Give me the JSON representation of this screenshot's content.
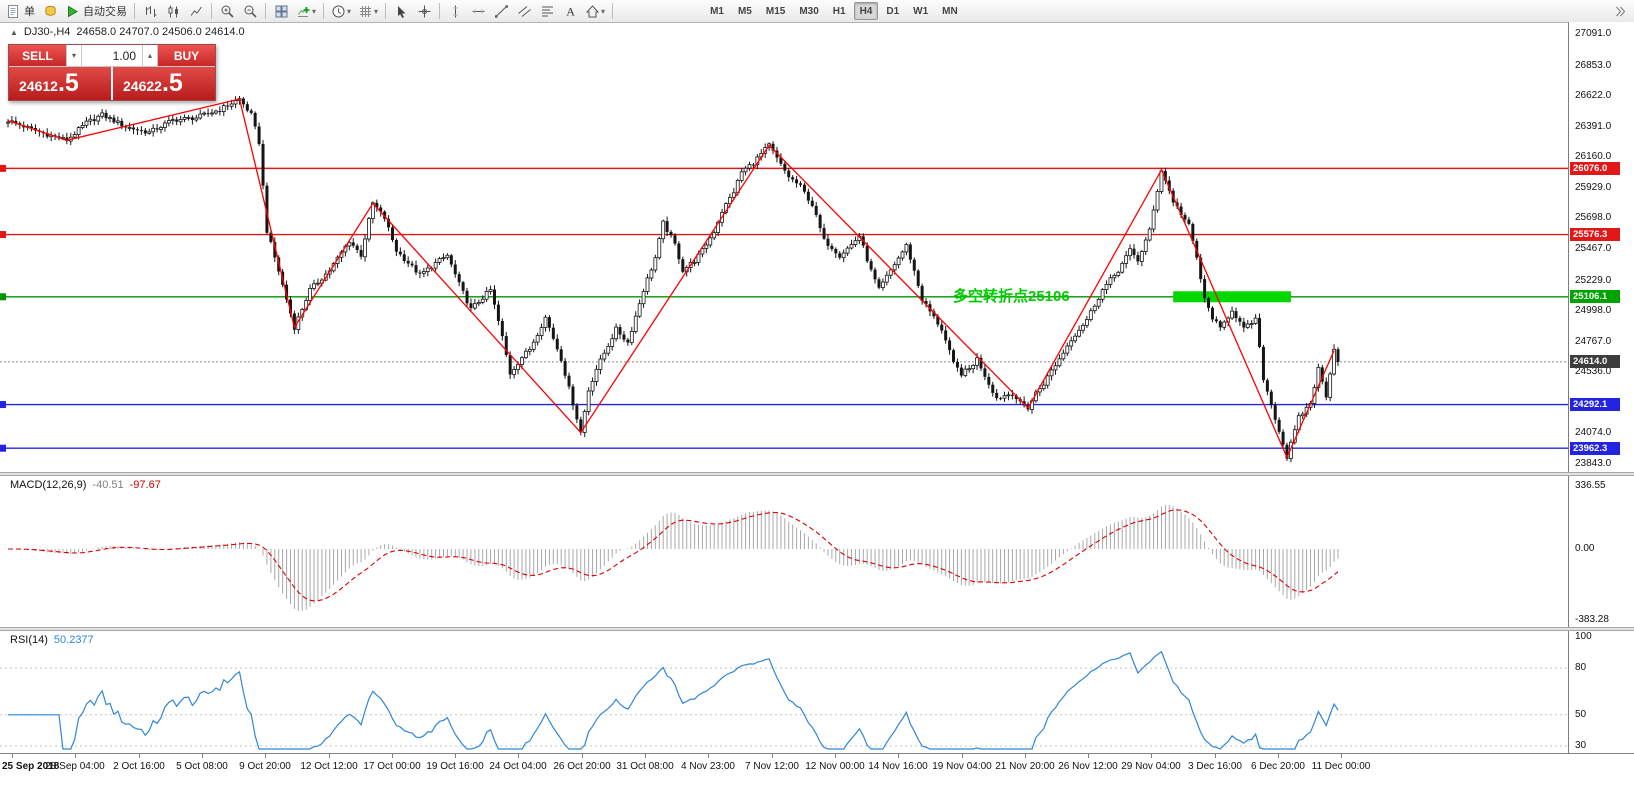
{
  "toolbar": {
    "order_label": "单",
    "autotrade_label": "自动交易",
    "items": [
      {
        "t": "labelicon",
        "g": "doc",
        "bind": "toolbar.order_label",
        "name": "new-order-button"
      },
      {
        "t": "icon",
        "g": "coins",
        "name": "deposit-icon"
      },
      {
        "t": "labelicon",
        "g": "play",
        "bind": "toolbar.autotrade_label",
        "name": "autotrade-button"
      },
      {
        "t": "sep"
      },
      {
        "t": "icon",
        "g": "bars",
        "name": "bar-chart-icon"
      },
      {
        "t": "icon",
        "g": "candles",
        "name": "candlestick-chart-icon"
      },
      {
        "t": "icon",
        "g": "linechart",
        "name": "line-chart-icon"
      },
      {
        "t": "sep"
      },
      {
        "t": "icon",
        "g": "zoomin",
        "name": "zoom-in-icon"
      },
      {
        "t": "icon",
        "g": "zoomout",
        "name": "zoom-out-icon"
      },
      {
        "t": "sep"
      },
      {
        "t": "icon",
        "g": "tile",
        "name": "tile-windows-icon"
      },
      {
        "t": "icon",
        "g": "indplus",
        "name": "insert-indicator-icon",
        "dd": true
      },
      {
        "t": "sep"
      },
      {
        "t": "icon",
        "g": "clock",
        "name": "periodicity-icon",
        "dd": true
      },
      {
        "t": "icon",
        "g": "grid",
        "name": "templates-icon",
        "dd": true
      },
      {
        "t": "sep"
      },
      {
        "t": "icon",
        "g": "cursor",
        "name": "cursor-icon"
      },
      {
        "t": "icon",
        "g": "crosshair",
        "name": "crosshair-icon"
      },
      {
        "t": "sep"
      },
      {
        "t": "icon",
        "g": "vline",
        "name": "vertical-line-icon"
      },
      {
        "t": "icon",
        "g": "hline",
        "name": "horizontal-line-icon"
      },
      {
        "t": "icon",
        "g": "trendline",
        "name": "trendline-icon"
      },
      {
        "t": "icon",
        "g": "channel",
        "name": "equidistant-channel-icon"
      },
      {
        "t": "icon",
        "g": "fibo",
        "name": "fibonacci-icon"
      },
      {
        "t": "icon",
        "g": "textA",
        "name": "text-label-icon"
      },
      {
        "t": "icon",
        "g": "arrows",
        "name": "arrows-icon",
        "dd": true
      },
      {
        "t": "sep"
      }
    ],
    "timeframes": [
      "M1",
      "M5",
      "M15",
      "M30",
      "H1",
      "H4",
      "D1",
      "W1",
      "MN"
    ],
    "active_timeframe": "H4"
  },
  "main_chart": {
    "title": "DJ30-,H4",
    "ohlc_text": "24658.0 24707.0 24506.0 24614.0"
  },
  "one_click": {
    "sell_label": "SELL",
    "buy_label": "BUY",
    "volume": "1.00",
    "sell_price": "24612",
    "sell_price_frac": ".5",
    "buy_price": "24622",
    "buy_price_frac": ".5"
  },
  "annotation": {
    "text": "多空转折点25106",
    "color": "#00cc00"
  },
  "chart_data": [
    {
      "type": "candlestick",
      "symbol": "DJ30-",
      "timeframe": "H4",
      "open": 24658.0,
      "high": 24707.0,
      "low": 24506.0,
      "close": 24614.0,
      "bars": 340,
      "y_ticks": [
        27091.0,
        26853.0,
        26622.0,
        26391.0,
        26160.0,
        25929.0,
        25698.0,
        25467.0,
        25229.0,
        24998.0,
        24767.0,
        24536.0,
        24305.0,
        24074.0,
        23843.0
      ],
      "x_ticks": [
        "25 Sep 2018",
        "28 Sep 04:00",
        "2 Oct 16:00",
        "5 Oct 08:00",
        "9 Oct 20:00",
        "12 Oct 12:00",
        "17 Oct 00:00",
        "19 Oct 16:00",
        "24 Oct 04:00",
        "26 Oct 20:00",
        "31 Oct 08:00",
        "4 Nov 23:00",
        "7 Nov 12:00",
        "12 Nov 00:00",
        "14 Nov 16:00",
        "19 Nov 04:00",
        "21 Nov 20:00",
        "26 Nov 12:00",
        "29 Nov 04:00",
        "3 Dec 16:00",
        "6 Dec 20:00",
        "11 Dec 00:00"
      ],
      "hlines": [
        {
          "price": 26076.0,
          "label": "26076.0",
          "color": "#e01818"
        },
        {
          "price": 25576.3,
          "label": "25576.3",
          "color": "#e01818"
        },
        {
          "price": 25106.1,
          "label": "25106.1",
          "color": "#009400",
          "tag": "#00a400"
        },
        {
          "price": 24614.0,
          "label": "24614.0",
          "color": "#8a8a8a",
          "tag": "#3c3c3c",
          "style": "current"
        },
        {
          "price": 24292.1,
          "label": "24292.1",
          "color": "#2424e0"
        },
        {
          "price": 23962.3,
          "label": "23962.3",
          "color": "#2424e0"
        }
      ],
      "green_box": {
        "price": 25106.1,
        "from_bar": 297,
        "to_bar": 327,
        "color": "#00d800"
      },
      "zigzag_color": "#ff0000",
      "zigzag": [
        [
          0,
          26437
        ],
        [
          15,
          26288
        ],
        [
          59,
          26600
        ],
        [
          73,
          24875
        ],
        [
          93,
          25812
        ],
        [
          146,
          24080
        ],
        [
          194,
          26250
        ],
        [
          260,
          24266
        ],
        [
          294,
          26065
        ],
        [
          326,
          23893
        ],
        [
          338,
          24700
        ]
      ],
      "price_path": [
        [
          0,
          26437
        ],
        [
          8,
          26350
        ],
        [
          15,
          26288
        ],
        [
          20,
          26420
        ],
        [
          24,
          26480
        ],
        [
          30,
          26390
        ],
        [
          36,
          26347
        ],
        [
          42,
          26440
        ],
        [
          48,
          26459
        ],
        [
          54,
          26520
        ],
        [
          59,
          26600
        ],
        [
          62,
          26480
        ],
        [
          64,
          26273
        ],
        [
          66,
          25604
        ],
        [
          69,
          25300
        ],
        [
          73,
          24875
        ],
        [
          77,
          25158
        ],
        [
          82,
          25306
        ],
        [
          87,
          25530
        ],
        [
          90,
          25420
        ],
        [
          93,
          25812
        ],
        [
          96,
          25700
        ],
        [
          99,
          25455
        ],
        [
          105,
          25269
        ],
        [
          109,
          25360
        ],
        [
          112,
          25418
        ],
        [
          115,
          25200
        ],
        [
          118,
          25010
        ],
        [
          121,
          25100
        ],
        [
          123,
          25158
        ],
        [
          126,
          24800
        ],
        [
          128,
          24526
        ],
        [
          131,
          24650
        ],
        [
          133,
          24712
        ],
        [
          137,
          24950
        ],
        [
          141,
          24637
        ],
        [
          144,
          24300
        ],
        [
          146,
          24080
        ],
        [
          148,
          24400
        ],
        [
          150,
          24562
        ],
        [
          155,
          24860
        ],
        [
          158,
          24760
        ],
        [
          162,
          25158
        ],
        [
          165,
          25400
        ],
        [
          167,
          25663
        ],
        [
          170,
          25500
        ],
        [
          172,
          25306
        ],
        [
          175,
          25380
        ],
        [
          177,
          25455
        ],
        [
          180,
          25600
        ],
        [
          182,
          25752
        ],
        [
          185,
          25900
        ],
        [
          187,
          26050
        ],
        [
          190,
          26120
        ],
        [
          194,
          26250
        ],
        [
          197,
          26100
        ],
        [
          199,
          26013
        ],
        [
          202,
          25938
        ],
        [
          205,
          25800
        ],
        [
          208,
          25530
        ],
        [
          210,
          25480
        ],
        [
          212,
          25418
        ],
        [
          215,
          25500
        ],
        [
          217,
          25566
        ],
        [
          220,
          25300
        ],
        [
          222,
          25158
        ],
        [
          225,
          25306
        ],
        [
          229,
          25492
        ],
        [
          231,
          25300
        ],
        [
          233,
          25084
        ],
        [
          236,
          24950
        ],
        [
          238,
          24860
        ],
        [
          241,
          24600
        ],
        [
          243,
          24526
        ],
        [
          245,
          24560
        ],
        [
          247,
          24637
        ],
        [
          250,
          24450
        ],
        [
          252,
          24340
        ],
        [
          254,
          24360
        ],
        [
          256,
          24377
        ],
        [
          258,
          24300
        ],
        [
          260,
          24266
        ],
        [
          262,
          24380
        ],
        [
          264,
          24451
        ],
        [
          266,
          24550
        ],
        [
          268,
          24637
        ],
        [
          271,
          24786
        ],
        [
          275,
          24935
        ],
        [
          279,
          25158
        ],
        [
          283,
          25306
        ],
        [
          286,
          25455
        ],
        [
          288,
          25380
        ],
        [
          291,
          25604
        ],
        [
          294,
          26065
        ],
        [
          297,
          25827
        ],
        [
          301,
          25641
        ],
        [
          303,
          25400
        ],
        [
          305,
          25084
        ],
        [
          307,
          24950
        ],
        [
          309,
          24860
        ],
        [
          312,
          25009
        ],
        [
          315,
          24860
        ],
        [
          318,
          24935
        ],
        [
          320,
          24489
        ],
        [
          323,
          24191
        ],
        [
          326,
          23893
        ],
        [
          329,
          24191
        ],
        [
          332,
          24302
        ],
        [
          334,
          24562
        ],
        [
          336,
          24360
        ],
        [
          338,
          24711
        ],
        [
          339,
          24614
        ]
      ]
    },
    {
      "type": "macd_histogram",
      "label": "MACD(12,26,9)",
      "value_main": "-40.51",
      "value_signal": "-97.67",
      "params": {
        "fast": 12,
        "slow": 26,
        "signal": 9
      },
      "hist_color": "#a8a8a8",
      "signal_color": "#dd0000",
      "y_ticks": [
        {
          "label": "336.55",
          "v": 336.55
        },
        {
          "label": "0.00",
          "v": 0
        },
        {
          "label": "-383.28",
          "v": -383.28
        }
      ]
    },
    {
      "type": "line",
      "label": "RSI(14)",
      "value": "50.2377",
      "period": 14,
      "line_color": "#2e86d9",
      "levels": [
        80,
        50,
        30
      ],
      "y_ticks": [
        100,
        80,
        50,
        30
      ]
    }
  ]
}
